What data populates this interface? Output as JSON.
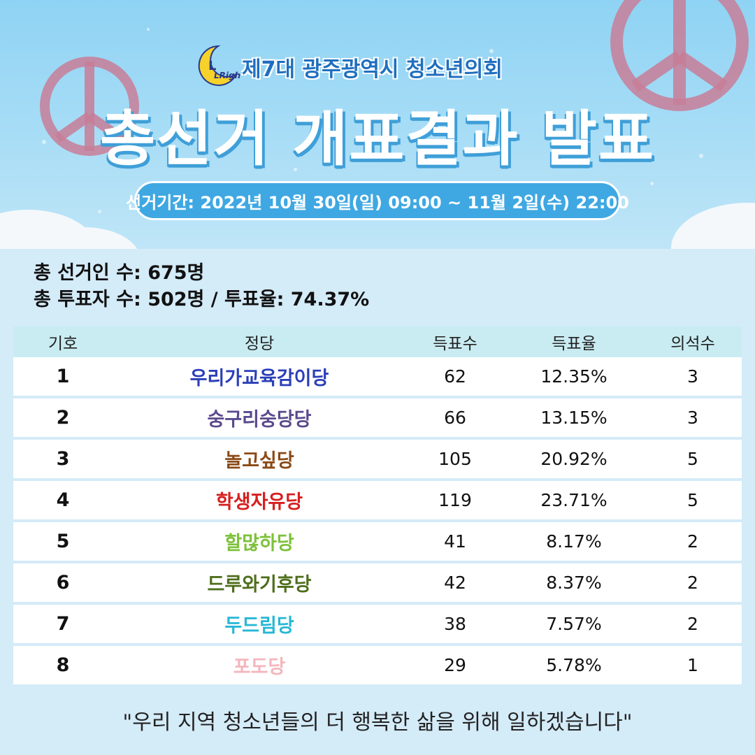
{
  "header": {
    "top_title": "제7대 광주광역시 청소년의회",
    "main_title": "총선거 개표결과 발표",
    "period": "선거기간: 2022년 10월 30일(일) 09:00 ~ 11월 2일(수) 22:00",
    "logo_text": "LRight"
  },
  "stats": {
    "line1": "총 선거인 수: 675명",
    "line2": "총 투표자 수: 502명 / 투표율: 74.37%"
  },
  "table": {
    "headers": [
      "기호",
      "정당",
      "득표수",
      "득표율",
      "의석수"
    ],
    "rows": [
      {
        "num": "1",
        "party": "우리가교육감이당",
        "color": "#2b3fb8",
        "votes": "62",
        "rate": "12.35%",
        "seats": "3"
      },
      {
        "num": "2",
        "party": "숭구리숭당당",
        "color": "#5a4a8c",
        "votes": "66",
        "rate": "13.15%",
        "seats": "3"
      },
      {
        "num": "3",
        "party": "놀고싶당",
        "color": "#8a4a16",
        "votes": "105",
        "rate": "20.92%",
        "seats": "5"
      },
      {
        "num": "4",
        "party": "학생자유당",
        "color": "#d61f1f",
        "votes": "119",
        "rate": "23.71%",
        "seats": "5"
      },
      {
        "num": "5",
        "party": "할많하당",
        "color": "#7dc13a",
        "votes": "41",
        "rate": "8.17%",
        "seats": "2"
      },
      {
        "num": "6",
        "party": "드루와기후당",
        "color": "#4e6e1c",
        "votes": "42",
        "rate": "8.37%",
        "seats": "2"
      },
      {
        "num": "7",
        "party": "두드림당",
        "color": "#27b7d6",
        "votes": "38",
        "rate": "7.57%",
        "seats": "2"
      },
      {
        "num": "8",
        "party": "포도당",
        "color": "#f4b6bd",
        "votes": "29",
        "rate": "5.78%",
        "seats": "1"
      }
    ]
  },
  "footer": {
    "quote": "\"우리 지역 청소년들의 더 행복한 삶을 위해 일하겠습니다\""
  },
  "icons": {
    "peace_left": "peace-symbol-icon",
    "peace_right": "peace-symbol-icon",
    "logo": "moon-logo-icon"
  }
}
